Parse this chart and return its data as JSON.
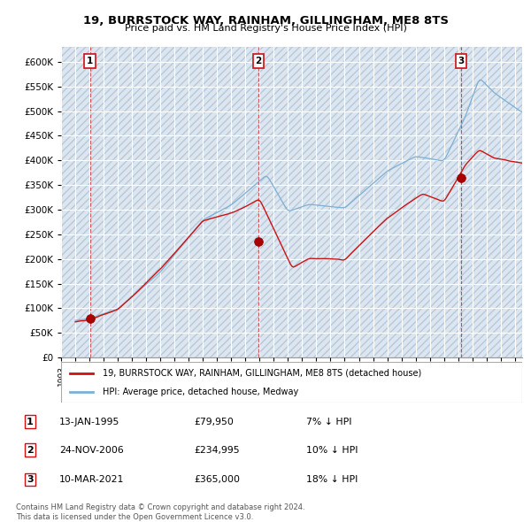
{
  "title1": "19, BURRSTOCK WAY, RAINHAM, GILLINGHAM, ME8 8TS",
  "title2": "Price paid vs. HM Land Registry's House Price Index (HPI)",
  "ytick_values": [
    0,
    50000,
    100000,
    150000,
    200000,
    250000,
    300000,
    350000,
    400000,
    450000,
    500000,
    550000,
    600000
  ],
  "xlim_start": 1993.5,
  "xlim_end": 2025.5,
  "ylim_min": 0,
  "ylim_max": 630000,
  "sale_dates": [
    1995.04,
    2006.92,
    2021.19
  ],
  "sale_prices": [
    79950,
    234995,
    365000
  ],
  "sale_labels": [
    "1",
    "2",
    "3"
  ],
  "legend_line1": "19, BURRSTOCK WAY, RAINHAM, GILLINGHAM, ME8 8TS (detached house)",
  "legend_line2": "HPI: Average price, detached house, Medway",
  "table_rows": [
    {
      "num": "1",
      "date": "13-JAN-1995",
      "price": "£79,950",
      "hpi": "7% ↓ HPI"
    },
    {
      "num": "2",
      "date": "24-NOV-2006",
      "price": "£234,995",
      "hpi": "10% ↓ HPI"
    },
    {
      "num": "3",
      "date": "10-MAR-2021",
      "price": "£365,000",
      "hpi": "18% ↓ HPI"
    }
  ],
  "footer": "Contains HM Land Registry data © Crown copyright and database right 2024.\nThis data is licensed under the Open Government Licence v3.0.",
  "bg_color": "#dce6f0",
  "hatch_color": "#b8c8d8",
  "hpi_color": "#7ab0d4",
  "price_color": "#cc1111",
  "dot_color": "#aa0000"
}
